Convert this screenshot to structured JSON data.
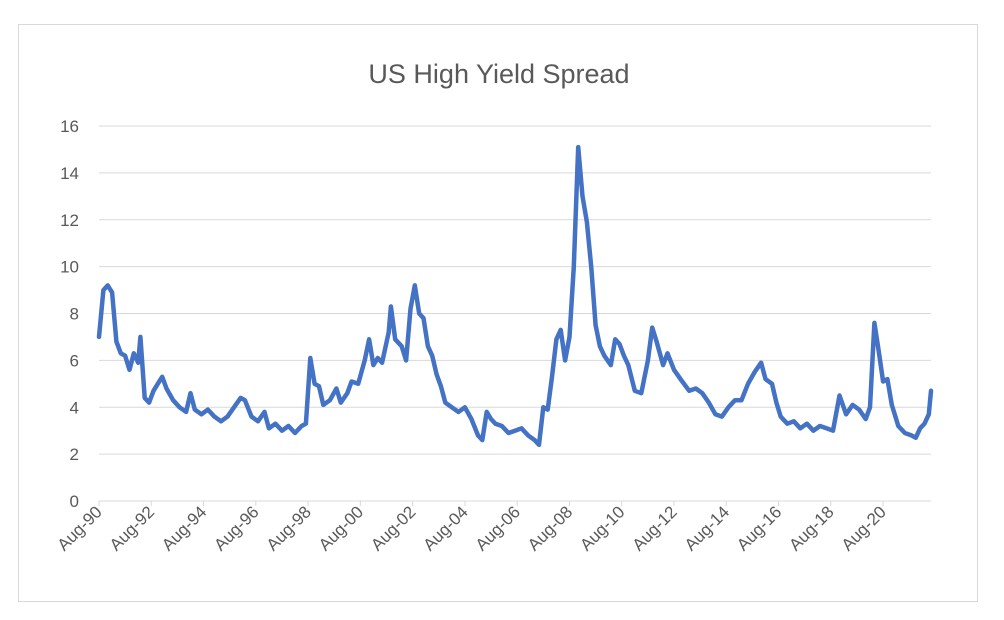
{
  "chart_data": {
    "type": "line",
    "title": "US High Yield Spread",
    "xlabel": "",
    "ylabel": "",
    "ylim": [
      0,
      16
    ],
    "y_ticks": [
      0,
      2,
      4,
      6,
      8,
      10,
      12,
      14,
      16
    ],
    "x_ticks": [
      "Aug-90",
      "Aug-92",
      "Aug-94",
      "Aug-96",
      "Aug-98",
      "Aug-00",
      "Aug-02",
      "Aug-04",
      "Aug-06",
      "Aug-08",
      "Aug-10",
      "Aug-12",
      "Aug-14",
      "Aug-16",
      "Aug-18",
      "Aug-20"
    ],
    "x_start": "1990-08",
    "x_end": "2022-06",
    "grid": true,
    "legend": "none",
    "line_color": "#4472C4",
    "series": [
      {
        "points": [
          [
            "1990-08",
            7.0
          ],
          [
            "1990-10",
            9.0
          ],
          [
            "1990-12",
            9.2
          ],
          [
            "1991-02",
            8.9
          ],
          [
            "1991-04",
            6.8
          ],
          [
            "1991-06",
            6.3
          ],
          [
            "1991-08",
            6.2
          ],
          [
            "1991-10",
            5.6
          ],
          [
            "1991-12",
            6.3
          ],
          [
            "1992-02",
            5.9
          ],
          [
            "1992-03",
            7.0
          ],
          [
            "1992-05",
            4.4
          ],
          [
            "1992-07",
            4.2
          ],
          [
            "1992-09",
            4.7
          ],
          [
            "1992-11",
            5.0
          ],
          [
            "1993-01",
            5.3
          ],
          [
            "1993-03",
            4.8
          ],
          [
            "1993-06",
            4.3
          ],
          [
            "1993-09",
            4.0
          ],
          [
            "1993-12",
            3.8
          ],
          [
            "1994-02",
            4.6
          ],
          [
            "1994-04",
            3.9
          ],
          [
            "1994-07",
            3.7
          ],
          [
            "1994-10",
            3.9
          ],
          [
            "1995-01",
            3.6
          ],
          [
            "1995-04",
            3.4
          ],
          [
            "1995-07",
            3.6
          ],
          [
            "1995-10",
            4.0
          ],
          [
            "1996-01",
            4.4
          ],
          [
            "1996-03",
            4.3
          ],
          [
            "1996-06",
            3.6
          ],
          [
            "1996-09",
            3.4
          ],
          [
            "1996-12",
            3.8
          ],
          [
            "1997-02",
            3.1
          ],
          [
            "1997-05",
            3.3
          ],
          [
            "1997-08",
            3.0
          ],
          [
            "1997-11",
            3.2
          ],
          [
            "1998-02",
            2.9
          ],
          [
            "1998-05",
            3.2
          ],
          [
            "1998-07",
            3.3
          ],
          [
            "1998-09",
            6.1
          ],
          [
            "1998-11",
            5.0
          ],
          [
            "1999-01",
            4.9
          ],
          [
            "1999-03",
            4.1
          ],
          [
            "1999-06",
            4.3
          ],
          [
            "1999-09",
            4.8
          ],
          [
            "1999-11",
            4.2
          ],
          [
            "2000-02",
            4.6
          ],
          [
            "2000-04",
            5.1
          ],
          [
            "2000-07",
            5.0
          ],
          [
            "2000-10",
            6.0
          ],
          [
            "2000-12",
            6.9
          ],
          [
            "2001-02",
            5.8
          ],
          [
            "2001-04",
            6.1
          ],
          [
            "2001-06",
            5.9
          ],
          [
            "2001-09",
            7.2
          ],
          [
            "2001-10",
            8.3
          ],
          [
            "2001-12",
            6.9
          ],
          [
            "2002-03",
            6.6
          ],
          [
            "2002-05",
            6.0
          ],
          [
            "2002-07",
            8.2
          ],
          [
            "2002-09",
            9.2
          ],
          [
            "2002-11",
            8.0
          ],
          [
            "2003-01",
            7.8
          ],
          [
            "2003-03",
            6.6
          ],
          [
            "2003-05",
            6.2
          ],
          [
            "2003-07",
            5.4
          ],
          [
            "2003-09",
            4.9
          ],
          [
            "2003-11",
            4.2
          ],
          [
            "2004-02",
            4.0
          ],
          [
            "2004-05",
            3.8
          ],
          [
            "2004-08",
            4.0
          ],
          [
            "2004-11",
            3.5
          ],
          [
            "2005-02",
            2.8
          ],
          [
            "2005-04",
            2.6
          ],
          [
            "2005-06",
            3.8
          ],
          [
            "2005-08",
            3.5
          ],
          [
            "2005-10",
            3.3
          ],
          [
            "2006-01",
            3.2
          ],
          [
            "2006-04",
            2.9
          ],
          [
            "2006-07",
            3.0
          ],
          [
            "2006-10",
            3.1
          ],
          [
            "2007-01",
            2.8
          ],
          [
            "2007-04",
            2.6
          ],
          [
            "2007-06",
            2.4
          ],
          [
            "2007-08",
            4.0
          ],
          [
            "2007-10",
            3.9
          ],
          [
            "2007-12",
            5.3
          ],
          [
            "2008-02",
            6.9
          ],
          [
            "2008-04",
            7.3
          ],
          [
            "2008-06",
            6.0
          ],
          [
            "2008-08",
            7.0
          ],
          [
            "2008-10",
            10.0
          ],
          [
            "2008-12",
            15.1
          ],
          [
            "2009-02",
            13.0
          ],
          [
            "2009-04",
            11.9
          ],
          [
            "2009-06",
            10.0
          ],
          [
            "2009-08",
            7.5
          ],
          [
            "2009-10",
            6.6
          ],
          [
            "2009-12",
            6.2
          ],
          [
            "2010-03",
            5.8
          ],
          [
            "2010-05",
            6.9
          ],
          [
            "2010-07",
            6.7
          ],
          [
            "2010-09",
            6.2
          ],
          [
            "2010-11",
            5.8
          ],
          [
            "2011-02",
            4.7
          ],
          [
            "2011-05",
            4.6
          ],
          [
            "2011-08",
            6.0
          ],
          [
            "2011-10",
            7.4
          ],
          [
            "2011-12",
            6.8
          ],
          [
            "2012-03",
            5.8
          ],
          [
            "2012-05",
            6.3
          ],
          [
            "2012-08",
            5.6
          ],
          [
            "2012-11",
            5.2
          ],
          [
            "2013-03",
            4.7
          ],
          [
            "2013-06",
            4.8
          ],
          [
            "2013-09",
            4.6
          ],
          [
            "2013-12",
            4.2
          ],
          [
            "2014-03",
            3.7
          ],
          [
            "2014-06",
            3.6
          ],
          [
            "2014-09",
            4.0
          ],
          [
            "2014-12",
            4.3
          ],
          [
            "2015-03",
            4.3
          ],
          [
            "2015-06",
            5.0
          ],
          [
            "2015-09",
            5.5
          ],
          [
            "2015-12",
            5.9
          ],
          [
            "2016-02",
            5.2
          ],
          [
            "2016-05",
            5.0
          ],
          [
            "2016-07",
            4.2
          ],
          [
            "2016-09",
            3.6
          ],
          [
            "2016-12",
            3.3
          ],
          [
            "2017-03",
            3.4
          ],
          [
            "2017-06",
            3.1
          ],
          [
            "2017-09",
            3.3
          ],
          [
            "2017-12",
            3.0
          ],
          [
            "2018-03",
            3.2
          ],
          [
            "2018-06",
            3.1
          ],
          [
            "2018-09",
            3.0
          ],
          [
            "2018-12",
            4.5
          ],
          [
            "2019-03",
            3.7
          ],
          [
            "2019-06",
            4.1
          ],
          [
            "2019-09",
            3.9
          ],
          [
            "2019-12",
            3.5
          ],
          [
            "2020-02",
            4.0
          ],
          [
            "2020-04",
            7.6
          ],
          [
            "2020-06",
            6.4
          ],
          [
            "2020-08",
            5.1
          ],
          [
            "2020-10",
            5.2
          ],
          [
            "2020-12",
            4.1
          ],
          [
            "2021-03",
            3.2
          ],
          [
            "2021-06",
            2.9
          ],
          [
            "2021-09",
            2.8
          ],
          [
            "2021-11",
            2.7
          ],
          [
            "2022-01",
            3.1
          ],
          [
            "2022-03",
            3.3
          ],
          [
            "2022-05",
            3.7
          ],
          [
            "2022-06",
            4.7
          ]
        ]
      }
    ]
  }
}
